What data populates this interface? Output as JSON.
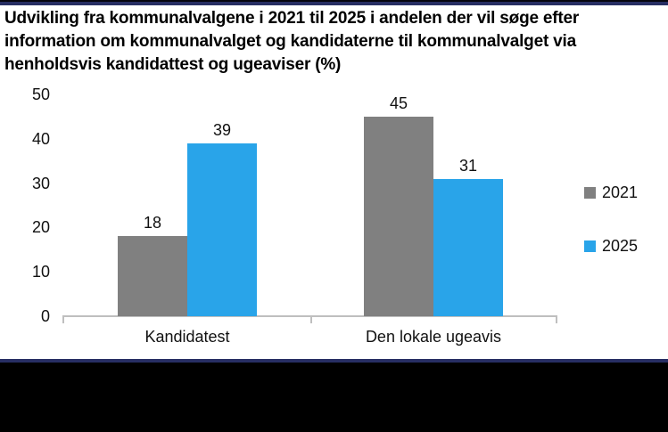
{
  "page": {
    "background": "#FFFFFF",
    "accent_navy": "#272E63",
    "bottom_panel_color": "#000000"
  },
  "header": {
    "title_lines": [
      "Udvikling fra kommunalvalgene i 2021 til 2025 i andelen der vil søge efter",
      "information om kommunalvalget og kandidaterne til kommunalvalget via",
      "henholdsvis kandidattest og ugeaviser (%)"
    ]
  },
  "chart_data": {
    "type": "bar",
    "title": "Udvikling fra kommunalvalgene i 2021 til 2025 i andelen der vil søge efter information om kommunalvalget og kandidaterne til kommunalvalget via henholdsvis kandidattest og ugeaviser (%)",
    "categories": [
      "Kandidatest",
      "Den lokale ugeavis"
    ],
    "series": [
      {
        "name": "2021",
        "color": "#808080",
        "values": [
          18,
          45
        ]
      },
      {
        "name": "2025",
        "color": "#29A4E9",
        "values": [
          39,
          31
        ]
      }
    ],
    "ylim": [
      0,
      50
    ],
    "yticks": [
      0,
      10,
      20,
      30,
      40,
      50
    ],
    "xlabel": "",
    "ylabel": "",
    "grid": false,
    "data_labels": true,
    "legend_position": "right",
    "axis_color": "#BFBFBF",
    "text_color": "#111111"
  }
}
